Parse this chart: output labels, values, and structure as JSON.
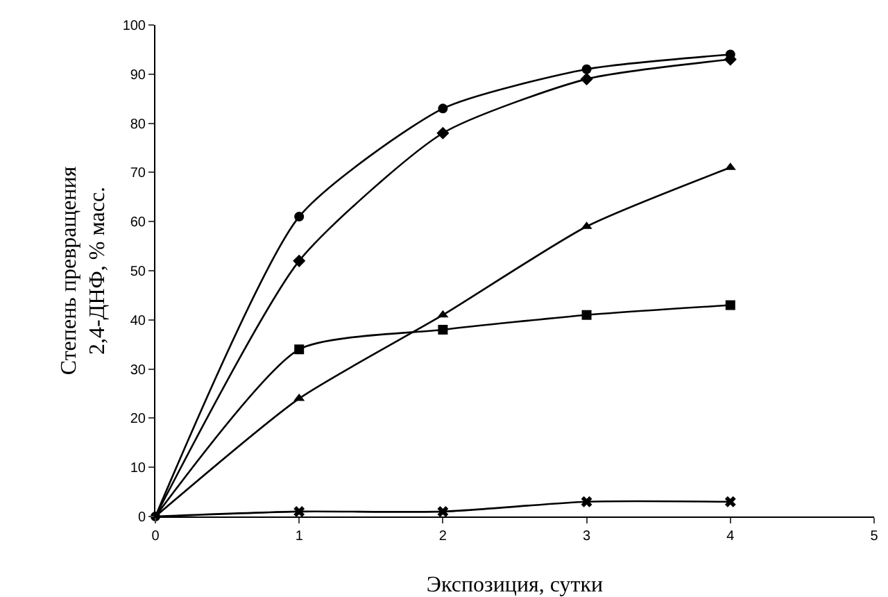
{
  "chart_data": {
    "type": "line",
    "xlabel": "Экспозиция, сутки",
    "ylabel": "Степень превращения\n2,4-ДНФ, % масс.",
    "x": [
      0,
      1,
      2,
      3,
      4
    ],
    "series": [
      {
        "color": "#000000",
        "marker": "circle",
        "values": [
          0,
          61,
          83,
          91,
          94
        ]
      },
      {
        "color": "#000000",
        "marker": "diamond",
        "values": [
          0,
          52,
          78,
          89,
          93
        ]
      },
      {
        "color": "#000000",
        "marker": "triangle",
        "values": [
          0,
          24,
          41,
          59,
          71
        ]
      },
      {
        "color": "#000000",
        "marker": "square",
        "values": [
          0,
          34,
          38,
          41,
          43
        ]
      },
      {
        "color": "#000000",
        "marker": "cross",
        "values": [
          0,
          1,
          1,
          3,
          3
        ]
      }
    ],
    "xlim": [
      0,
      5
    ],
    "xticks": [
      0,
      1,
      2,
      3,
      4,
      5
    ],
    "ylim": [
      0,
      100
    ],
    "yticks": [
      0,
      10,
      20,
      30,
      40,
      50,
      60,
      70,
      80,
      90,
      100
    ],
    "grid": false,
    "line_style": "solid"
  }
}
